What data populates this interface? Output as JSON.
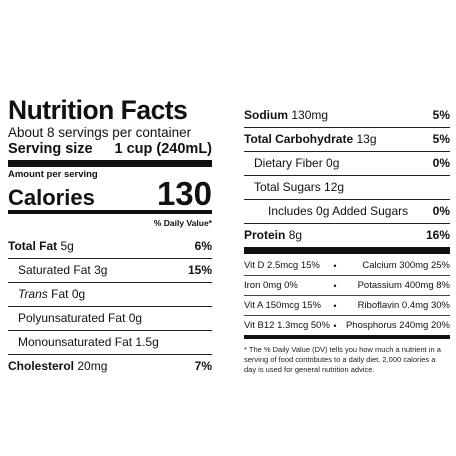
{
  "label": {
    "title": "Nutrition Facts",
    "servings_per_container": "About 8 servings per container",
    "serving_size_label": "Serving size",
    "serving_size_value": "1 cup (240mL)",
    "amount_per_serving": "Amount per serving",
    "calories_label": "Calories",
    "calories_value": "130",
    "daily_value_header": "% Daily Value*"
  },
  "left_nutrients": [
    {
      "name": "Total Fat",
      "amount": "5g",
      "dv": "6%"
    },
    {
      "name": "Saturated Fat",
      "amount": "3g",
      "dv": "15%"
    },
    {
      "name": "Trans",
      "amount": "Fat 0g",
      "dv": ""
    },
    {
      "name": "Polyunsaturated Fat",
      "amount": "0g",
      "dv": ""
    },
    {
      "name": "Monounsaturated Fat",
      "amount": "1.5g",
      "dv": ""
    },
    {
      "name": "Cholesterol",
      "amount": "20mg",
      "dv": "7%"
    }
  ],
  "right_nutrients": [
    {
      "name": "Sodium",
      "amount": "130mg",
      "dv": "5%"
    },
    {
      "name": "Total Carbohydrate",
      "amount": "13g",
      "dv": "5%"
    },
    {
      "name": "Dietary Fiber",
      "amount": "0g",
      "dv": "0%"
    },
    {
      "name": "Total Sugars",
      "amount": "12g",
      "dv": ""
    },
    {
      "name": "Includes",
      "amount": "0g Added Sugars",
      "dv": "0%"
    },
    {
      "name": "Protein",
      "amount": "8g",
      "dv": "16%"
    }
  ],
  "vitamins": [
    {
      "left": "Vit D 2.5mcg 15%",
      "dot": "•",
      "right": "Calcium 300mg 25%"
    },
    {
      "left": "Iron 0mg 0%",
      "dot": "•",
      "right": "Potassium 400mg 8%"
    },
    {
      "left": "Vit A 150mcg 15%",
      "dot": "•",
      "right": "Riboflavin 0.4mg 30%"
    },
    {
      "left": "Vit B12 1.3mcg 50%",
      "dot": "•",
      "right": "Phosphorus 240mg 20%"
    }
  ],
  "footnote": "* The % Daily Value (DV) tells you how much a nutrient in a serving of food contributes to a daily diet. 2,000 calories a day is used for general nutrition advice."
}
